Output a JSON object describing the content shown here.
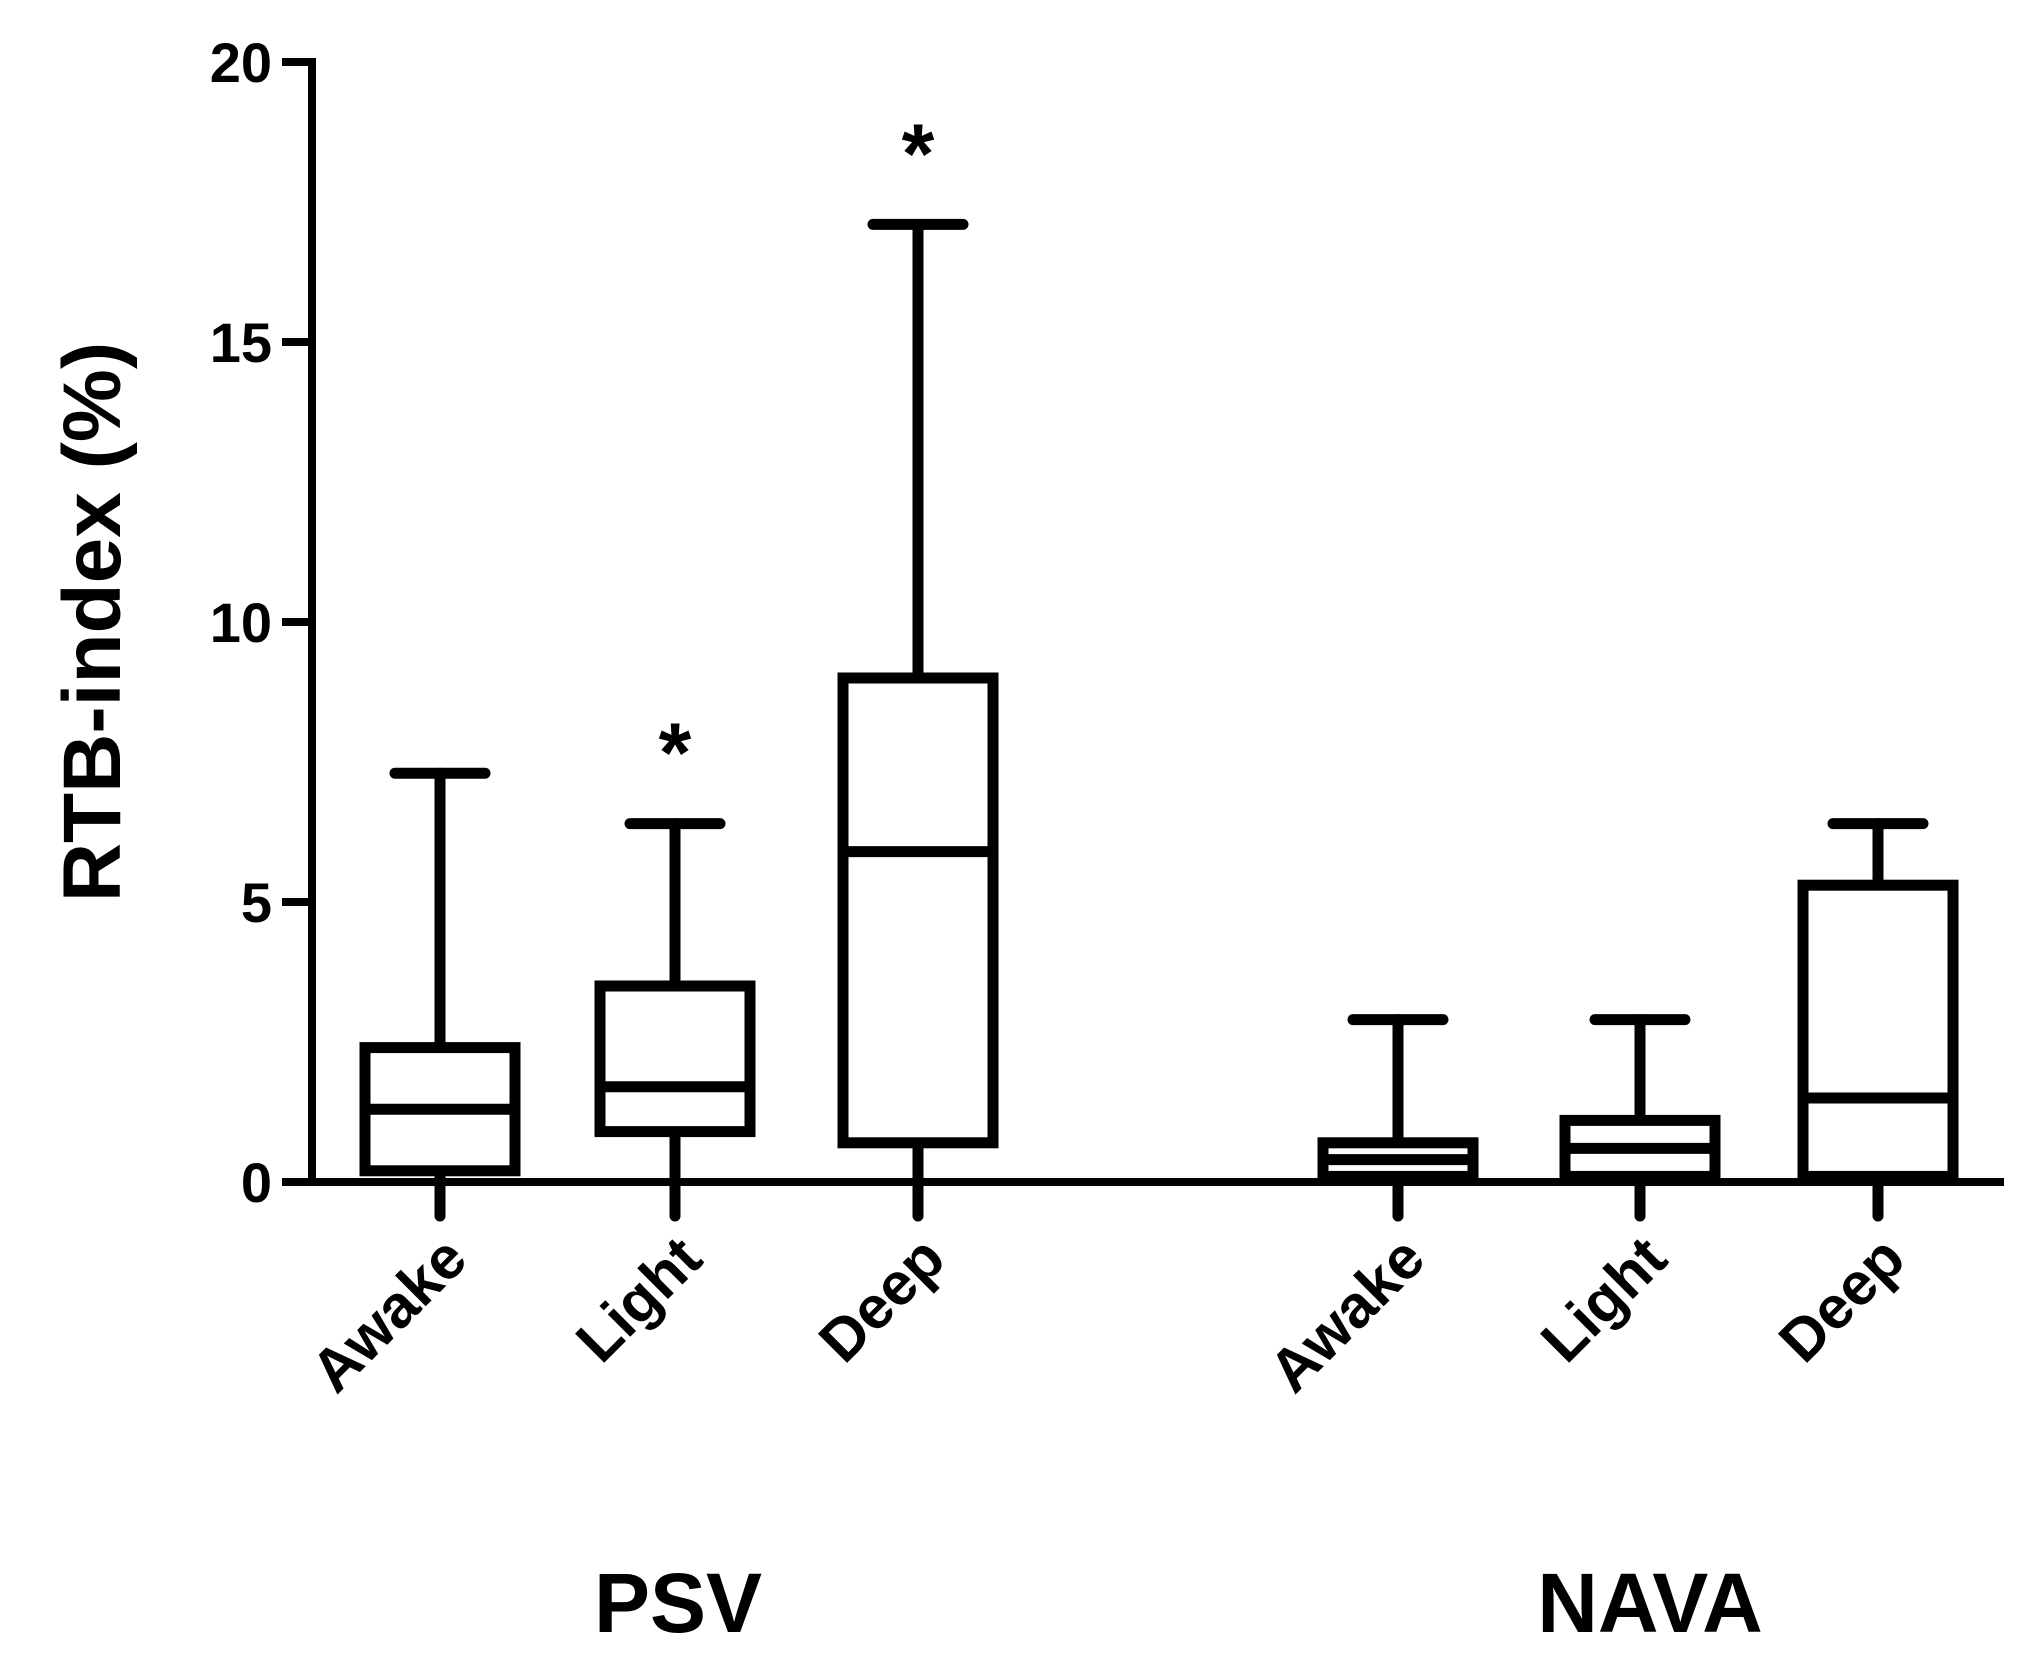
{
  "chart_data": {
    "type": "box",
    "ylabel": "RTB-index (%)",
    "ylim": [
      0,
      20
    ],
    "yticks": [
      0,
      5,
      10,
      15,
      20
    ],
    "groups": [
      "PSV",
      "NAVA"
    ],
    "boxes": [
      {
        "group": "PSV",
        "category": "Awake",
        "min": 0.0,
        "q1": 0.2,
        "median": 1.3,
        "q3": 2.4,
        "max": 7.3,
        "significant": false
      },
      {
        "group": "PSV",
        "category": "Light",
        "min": 0.0,
        "q1": 0.9,
        "median": 1.7,
        "q3": 3.5,
        "max": 6.4,
        "significant": true
      },
      {
        "group": "PSV",
        "category": "Deep",
        "min": 0.0,
        "q1": 0.7,
        "median": 5.9,
        "q3": 9.0,
        "max": 17.1,
        "significant": true
      },
      {
        "group": "NAVA",
        "category": "Awake",
        "min": 0.0,
        "q1": 0.1,
        "median": 0.4,
        "q3": 0.7,
        "max": 2.9,
        "significant": false
      },
      {
        "group": "NAVA",
        "category": "Light",
        "min": 0.0,
        "q1": 0.1,
        "median": 0.6,
        "q3": 1.1,
        "max": 2.9,
        "significant": false
      },
      {
        "group": "NAVA",
        "category": "Deep",
        "min": 0.0,
        "q1": 0.1,
        "median": 1.5,
        "q3": 5.3,
        "max": 6.4,
        "significant": false
      }
    ],
    "significance_marker": "*"
  }
}
